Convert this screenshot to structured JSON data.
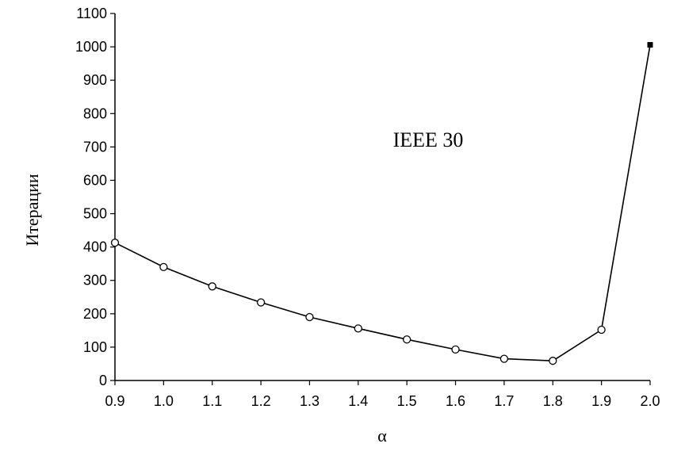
{
  "chart_data": {
    "type": "line",
    "title": "",
    "xlabel": "α",
    "ylabel": "Итерации",
    "xlim": [
      0.9,
      2.0
    ],
    "ylim": [
      0,
      1100
    ],
    "xticks": [
      "0.9",
      "1.0",
      "1.1",
      "1.2",
      "1.3",
      "1.4",
      "1.5",
      "1.6",
      "1.7",
      "1.8",
      "1.9",
      "2.0"
    ],
    "yticks": [
      "0",
      "100",
      "200",
      "300",
      "400",
      "500",
      "600",
      "700",
      "800",
      "900",
      "1000",
      "1100"
    ],
    "grid": false,
    "annotation": "IEEE 30",
    "series": [
      {
        "x": [
          0.9,
          1.0,
          1.1,
          1.2,
          1.3,
          1.4,
          1.5,
          1.6,
          1.7,
          1.8,
          1.9,
          2.0
        ],
        "y": [
          413,
          340,
          282,
          234,
          190,
          156,
          123,
          93,
          65,
          59,
          152,
          1006
        ],
        "markers": [
          "circle",
          "circle",
          "circle",
          "circle",
          "circle",
          "circle",
          "circle",
          "circle",
          "circle",
          "circle",
          "circle",
          "square"
        ],
        "color": "#000000"
      }
    ]
  }
}
